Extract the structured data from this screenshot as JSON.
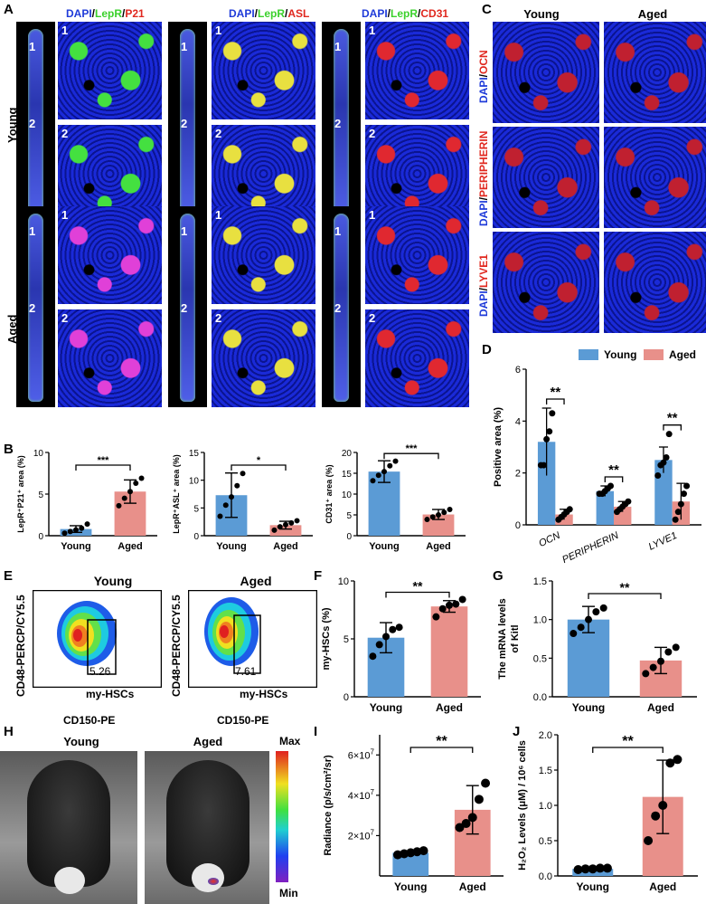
{
  "labels": {
    "A": "A",
    "B": "B",
    "C": "C",
    "D": "D",
    "E": "E",
    "F": "F",
    "G": "G",
    "H": "H",
    "I": "I",
    "J": "J"
  },
  "panelA": {
    "stain_cols": [
      {
        "dapi": "DAPI",
        "lepr": "LepR",
        "marker": "P21"
      },
      {
        "dapi": "DAPI",
        "lepr": "LepR",
        "marker": "ASL"
      },
      {
        "dapi": "DAPI",
        "lepr": "LepR",
        "marker": "CD31"
      }
    ],
    "sep": "/",
    "rows": [
      "Young",
      "Aged"
    ],
    "region1": "1",
    "region2": "2"
  },
  "panelC": {
    "cols": [
      "Young",
      "Aged"
    ],
    "rows": [
      {
        "dapi": "DAPI",
        "marker": "OCN"
      },
      {
        "dapi": "DAPI",
        "marker": "PERIPHERIN"
      },
      {
        "dapi": "DAPI",
        "marker": "LYVE1"
      }
    ]
  },
  "panelE": {
    "plots": [
      {
        "title": "Young",
        "gate_value": "5.26"
      },
      {
        "title": "Aged",
        "gate_value": "7.61"
      }
    ],
    "ylabel": "CD48-PERCP/CY5.5",
    "xlabel": "CD150-PE",
    "gate_name": "my-HSCs"
  },
  "panelH": {
    "cols": [
      "Young",
      "Aged"
    ],
    "scale_max": "Max",
    "scale_min": "Min"
  },
  "chart_data": [
    {
      "id": "B1",
      "type": "bar",
      "categories": [
        "Young",
        "Aged"
      ],
      "values": [
        0.8,
        5.3
      ],
      "points": [
        [
          0.3,
          0.5,
          0.7,
          0.9,
          1.4
        ],
        [
          3.6,
          4.5,
          5.3,
          6.3,
          6.9
        ]
      ],
      "sd": [
        0.4,
        1.4
      ],
      "ylabel": "LepR⁺P21⁺ area (%)",
      "ylim": [
        0,
        10
      ],
      "yticks": [
        "0",
        "5",
        "10"
      ],
      "sig": "***",
      "colors": [
        "#5b9bd5",
        "#e8908a"
      ]
    },
    {
      "id": "B2",
      "type": "bar",
      "categories": [
        "Young",
        "Aged"
      ],
      "values": [
        7.3,
        1.9
      ],
      "points": [
        [
          3.5,
          5.5,
          7.0,
          9.0,
          11.2
        ],
        [
          1.0,
          1.6,
          2.0,
          2.3,
          2.7
        ]
      ],
      "sd": [
        4.0,
        0.7
      ],
      "ylabel": "LepR⁺ASL⁺ area (%)",
      "ylim": [
        0,
        15
      ],
      "yticks": [
        "0",
        "5",
        "10",
        "15"
      ],
      "sig": "*",
      "colors": [
        "#5b9bd5",
        "#e8908a"
      ]
    },
    {
      "id": "B3",
      "type": "bar",
      "categories": [
        "Young",
        "Aged"
      ],
      "values": [
        15.4,
        5.1
      ],
      "points": [
        [
          13.2,
          14.5,
          15.4,
          16.8,
          17.9
        ],
        [
          3.9,
          4.5,
          5.0,
          5.6,
          6.3
        ]
      ],
      "sd": [
        2.6,
        1.2
      ],
      "ylabel": "CD31⁺ area (%)",
      "ylim": [
        0,
        20
      ],
      "yticks": [
        "0",
        "5",
        "10",
        "15",
        "20"
      ],
      "sig": "***",
      "colors": [
        "#5b9bd5",
        "#e8908a"
      ]
    },
    {
      "id": "D",
      "type": "bar",
      "categories": [
        "OCN",
        "PERIPHERIN",
        "LYVE1"
      ],
      "series": [
        {
          "name": "Young",
          "values": [
            3.2,
            1.3,
            2.5
          ],
          "sd": [
            1.3,
            0.2,
            0.5
          ],
          "points": [
            [
              2.3,
              2.3,
              3.3,
              3.6,
              4.3
            ],
            [
              1.2,
              1.2,
              1.3,
              1.4,
              1.5
            ],
            [
              1.9,
              2.3,
              2.4,
              2.6,
              3.5
            ]
          ]
        },
        {
          "name": "Aged",
          "values": [
            0.4,
            0.7,
            0.9
          ],
          "sd": [
            0.2,
            0.2,
            0.7
          ],
          "points": [
            [
              0.2,
              0.3,
              0.4,
              0.5,
              0.6
            ],
            [
              0.5,
              0.6,
              0.7,
              0.8,
              0.9
            ],
            [
              0.2,
              0.5,
              0.8,
              1.2,
              1.5
            ]
          ]
        }
      ],
      "ylabel": "Positive area (%)",
      "ylim": [
        0,
        6
      ],
      "yticks": [
        "0",
        "2",
        "4",
        "6"
      ],
      "sig": [
        "**",
        "**",
        "**"
      ],
      "legend": "top-right",
      "colors": [
        "#5b9bd5",
        "#e8908a"
      ]
    },
    {
      "id": "F",
      "type": "bar",
      "categories": [
        "Young",
        "Aged"
      ],
      "values": [
        5.1,
        7.8
      ],
      "points": [
        [
          3.5,
          4.5,
          5.2,
          5.8,
          6.0
        ],
        [
          6.9,
          7.6,
          7.9,
          8.0,
          8.4
        ]
      ],
      "sd": [
        1.3,
        0.5
      ],
      "ylabel": "my-HSCs (%)",
      "ylim": [
        0,
        10
      ],
      "yticks": [
        "0",
        "5",
        "10"
      ],
      "sig": "**",
      "colors": [
        "#5b9bd5",
        "#e8908a"
      ]
    },
    {
      "id": "G",
      "type": "bar",
      "categories": [
        "Young",
        "Aged"
      ],
      "values": [
        1.0,
        0.47
      ],
      "points": [
        [
          0.82,
          0.9,
          1.0,
          1.1,
          1.15
        ],
        [
          0.3,
          0.38,
          0.46,
          0.58,
          0.64
        ]
      ],
      "sd": [
        0.17,
        0.17
      ],
      "ylabel_lines": [
        "The mRNA levels",
        "of Kitl"
      ],
      "ylim": [
        0,
        1.5
      ],
      "yticks": [
        "0.0",
        "0.5",
        "1.0",
        "1.5"
      ],
      "sig": "**",
      "colors": [
        "#5b9bd5",
        "#e8908a"
      ]
    },
    {
      "id": "I",
      "type": "bar",
      "categories": [
        "Young",
        "Aged"
      ],
      "values": [
        11500000,
        32800000
      ],
      "points": [
        [
          10500000,
          11000000,
          11500000,
          12000000,
          12500000
        ],
        [
          24000000,
          26000000,
          29000000,
          38000000,
          46000000
        ]
      ],
      "sd": [
        800000,
        12000000
      ],
      "ylabel": "Radiance (p/s/cm²/sr)",
      "ylim": [
        0,
        70000000
      ],
      "yticks": [
        {
          "v": 20000000,
          "m": "2×10",
          "e": "7"
        },
        {
          "v": 40000000,
          "m": "4×10",
          "e": "7"
        },
        {
          "v": 60000000,
          "m": "6×10",
          "e": "7"
        }
      ],
      "sig": "**",
      "colors": [
        "#5b9bd5",
        "#e8908a"
      ]
    },
    {
      "id": "J",
      "type": "bar",
      "categories": [
        "Young",
        "Aged"
      ],
      "values": [
        0.1,
        1.12
      ],
      "points": [
        [
          0.09,
          0.1,
          0.1,
          0.11,
          0.11
        ],
        [
          0.5,
          0.85,
          1.0,
          1.6,
          1.65
        ]
      ],
      "sd": [
        0.01,
        0.52
      ],
      "ylabel": "H₂O₂ Levels (μM) / 10⁶ cells",
      "ylim": [
        0,
        2.0
      ],
      "yticks": [
        "0.0",
        "0.5",
        "1.0",
        "1.5",
        "2.0"
      ],
      "sig": "**",
      "colors": [
        "#5b9bd5",
        "#e8908a"
      ]
    }
  ]
}
